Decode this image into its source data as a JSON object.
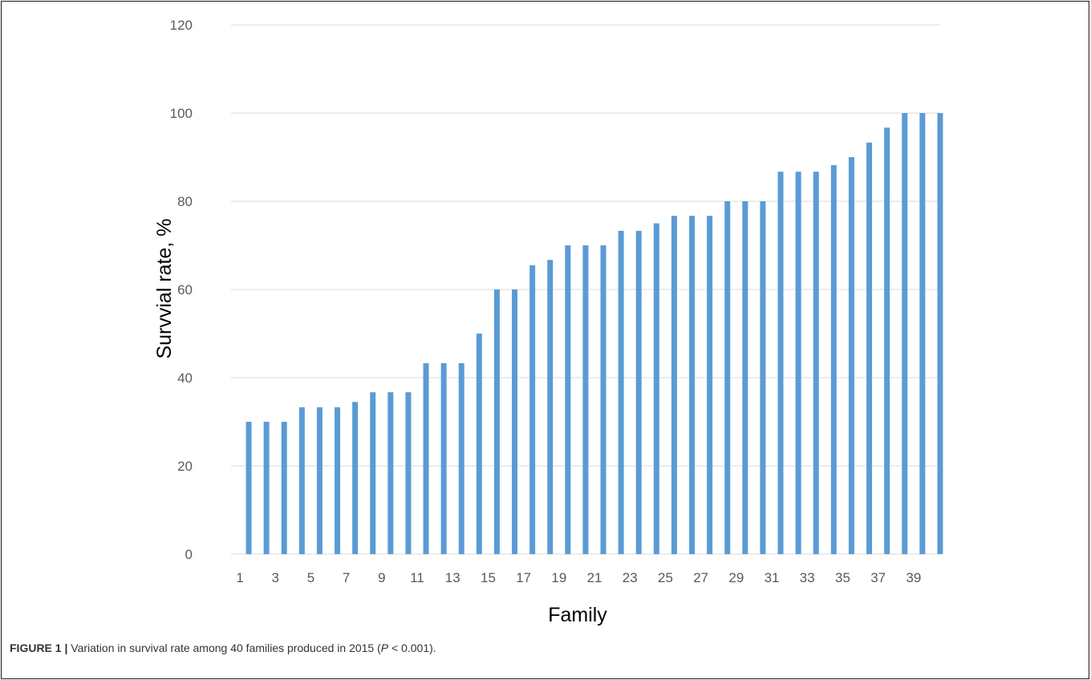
{
  "chart_data": {
    "type": "bar",
    "x": [
      1,
      2,
      3,
      4,
      5,
      6,
      7,
      8,
      9,
      10,
      11,
      12,
      13,
      14,
      15,
      16,
      17,
      18,
      19,
      20,
      21,
      22,
      23,
      24,
      25,
      26,
      27,
      28,
      29,
      30,
      31,
      32,
      33,
      34,
      35,
      36,
      37,
      38,
      39,
      40
    ],
    "x_tick_labels": [
      "1",
      "3",
      "5",
      "7",
      "9",
      "11",
      "13",
      "15",
      "17",
      "19",
      "21",
      "23",
      "25",
      "27",
      "29",
      "31",
      "33",
      "35",
      "37",
      "39"
    ],
    "values": [
      30,
      30,
      30,
      33.3,
      33.3,
      33.3,
      34.5,
      36.7,
      36.7,
      36.7,
      43.3,
      43.3,
      43.3,
      50,
      60,
      60,
      65.5,
      66.7,
      70,
      70,
      70,
      73.3,
      73.3,
      75,
      76.7,
      76.7,
      76.7,
      80,
      80,
      80,
      86.7,
      86.7,
      86.7,
      88.2,
      90,
      93.3,
      96.7,
      100,
      100,
      100
    ],
    "xlabel": "Family",
    "ylabel": "Survvial rate, %",
    "ylim": [
      0,
      120
    ],
    "yticks": [
      0,
      20,
      40,
      60,
      80,
      100,
      120
    ],
    "grid": true,
    "bar_color": "#5b9bd5",
    "grid_color": "#d9d9d9"
  },
  "caption": {
    "label": "FIGURE 1 |",
    "text_before": " Variation in survival rate among 40 families produced in 2015 (",
    "p_symbol": "P",
    "text_after": " <  0.001)."
  }
}
